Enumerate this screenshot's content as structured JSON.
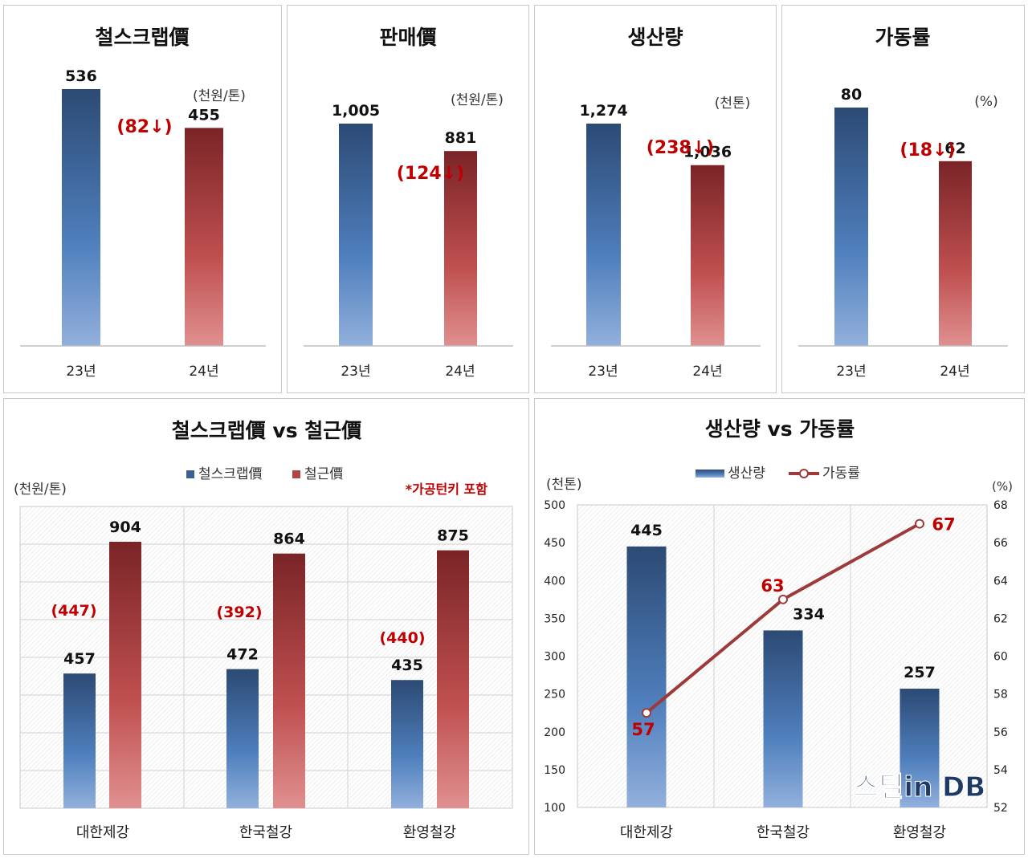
{
  "chart_data": [
    {
      "type": "bar",
      "title": "철스크랩價",
      "unit": "(천원/톤)",
      "categories": [
        "23년",
        "24년"
      ],
      "values": [
        536,
        455
      ],
      "value_labels": [
        "536",
        "455"
      ],
      "change_label": "(82↓)",
      "ylim": [
        0,
        600
      ],
      "colors": [
        "#3b5f8f",
        "#b04545"
      ]
    },
    {
      "type": "bar",
      "title": "판매價",
      "unit": "(천원/톤)",
      "categories": [
        "23년",
        "24년"
      ],
      "values": [
        1005,
        881
      ],
      "value_labels": [
        "1,005",
        "881"
      ],
      "change_label": "(124↓)",
      "ylim": [
        0,
        1130
      ],
      "colors": [
        "#3b5f8f",
        "#b04545"
      ]
    },
    {
      "type": "bar",
      "title": "생산량",
      "unit": "(천톤)",
      "categories": [
        "23년",
        "24년"
      ],
      "values": [
        1274,
        1036
      ],
      "value_labels": [
        "1,274",
        "1,036"
      ],
      "change_label": "(238↓)",
      "ylim": [
        0,
        1430
      ],
      "colors": [
        "#3b5f8f",
        "#b04545"
      ]
    },
    {
      "type": "bar",
      "title": "가동률",
      "unit": "(%)",
      "categories": [
        "23년",
        "24년"
      ],
      "values": [
        80,
        62
      ],
      "value_labels": [
        "80",
        "62"
      ],
      "change_label": "(18↓)",
      "ylim": [
        0,
        108
      ],
      "colors": [
        "#3b5f8f",
        "#b04545"
      ]
    },
    {
      "type": "bar",
      "title": "철스크랩價 vs 철근價",
      "ylabel": "(천원/톤)",
      "note": "*가공턴키 포함",
      "categories": [
        "대한제강",
        "한국철강",
        "환영철강"
      ],
      "series": [
        {
          "name": "철스크랩價",
          "values": [
            457,
            472,
            435
          ],
          "color": "#3b5f8f"
        },
        {
          "name": "철근價",
          "values": [
            904,
            864,
            875
          ],
          "color": "#b04545"
        }
      ],
      "diff_labels": [
        "(447)",
        "(392)",
        "(440)"
      ],
      "ylim": [
        0,
        1000
      ],
      "grid": true,
      "legend": "top-center"
    },
    {
      "type": "bar",
      "title": "생산량 vs 가동률",
      "ylabel": "(천톤)",
      "y2label": "(%)",
      "categories": [
        "대한제강",
        "한국철강",
        "환영철강"
      ],
      "series": [
        {
          "name": "생산량",
          "type": "bar",
          "values": [
            445,
            334,
            257
          ],
          "color": "#3b5f8f"
        },
        {
          "name": "가동률",
          "type": "line",
          "values": [
            57,
            63,
            67
          ],
          "color": "#9e3a3a"
        }
      ],
      "yticks": [
        "100",
        "150",
        "200",
        "250",
        "300",
        "350",
        "400",
        "450",
        "500"
      ],
      "y2ticks": [
        "52",
        "54",
        "56",
        "58",
        "60",
        "62",
        "64",
        "66",
        "68"
      ],
      "ylim": [
        100,
        500
      ],
      "y2lim": [
        52,
        68
      ],
      "grid": true,
      "legend": "top-center",
      "watermark": "스틸in DB"
    }
  ]
}
